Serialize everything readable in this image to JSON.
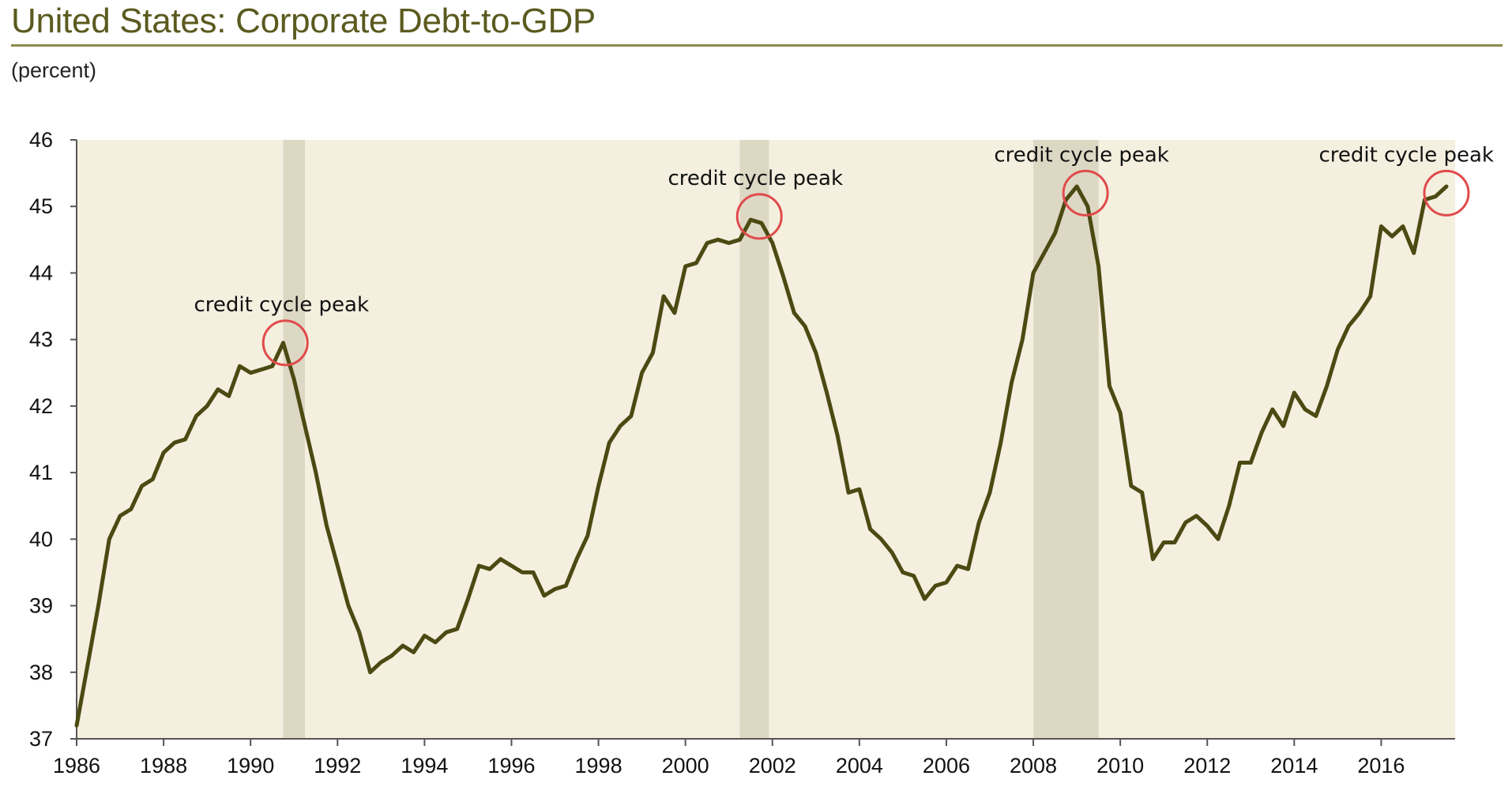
{
  "chart_data": {
    "type": "line",
    "title": "United States: Corporate Debt-to-GDP",
    "subtitle": "(percent)",
    "xlabel": "",
    "ylabel": "",
    "xlim": [
      1986,
      2017.7
    ],
    "ylim": [
      37,
      46
    ],
    "xticks": [
      "1986",
      "1988",
      "1990",
      "1992",
      "1994",
      "1996",
      "1998",
      "2000",
      "2002",
      "2004",
      "2006",
      "2008",
      "2010",
      "2012",
      "2014",
      "2016"
    ],
    "yticks": [
      "37",
      "38",
      "39",
      "40",
      "41",
      "42",
      "43",
      "44",
      "45",
      "46"
    ],
    "colors": {
      "line": "#4a4a12",
      "plot_bg": "#f4efdf",
      "recession": "#ddd8c4",
      "peak_circle": "#e04b4b",
      "title": "#5b5a1f"
    },
    "recessions": [
      {
        "start": 1990.75,
        "end": 1991.25
      },
      {
        "start": 2001.25,
        "end": 2001.92
      },
      {
        "start": 2008.0,
        "end": 2009.5
      }
    ],
    "annotations": [
      {
        "text": "credit cycle peak",
        "x": 1990.8,
        "y": 42.95
      },
      {
        "text": "credit cycle peak",
        "x": 2001.7,
        "y": 44.85
      },
      {
        "text": "credit cycle peak",
        "x": 2009.2,
        "y": 45.2
      },
      {
        "text": "credit cycle peak",
        "x": 2017.5,
        "y": 45.2
      }
    ],
    "series": [
      {
        "x": [
          1986.0,
          1986.25,
          1986.5,
          1986.75,
          1987.0,
          1987.25,
          1987.5,
          1987.75,
          1988.0,
          1988.25,
          1988.5,
          1988.75,
          1989.0,
          1989.25,
          1989.5,
          1989.75,
          1990.0,
          1990.25,
          1990.5,
          1990.75,
          1991.0,
          1991.25,
          1991.5,
          1991.75,
          1992.0,
          1992.25,
          1992.5,
          1992.75,
          1993.0,
          1993.25,
          1993.5,
          1993.75,
          1994.0,
          1994.25,
          1994.5,
          1994.75,
          1995.0,
          1995.25,
          1995.5,
          1995.75,
          1996.0,
          1996.25,
          1996.5,
          1996.75,
          1997.0,
          1997.25,
          1997.5,
          1997.75,
          1998.0,
          1998.25,
          1998.5,
          1998.75,
          1999.0,
          1999.25,
          1999.5,
          1999.75,
          2000.0,
          2000.25,
          2000.5,
          2000.75,
          2001.0,
          2001.25,
          2001.5,
          2001.75,
          2002.0,
          2002.25,
          2002.5,
          2002.75,
          2003.0,
          2003.25,
          2003.5,
          2003.75,
          2004.0,
          2004.25,
          2004.5,
          2004.75,
          2005.0,
          2005.25,
          2005.5,
          2005.75,
          2006.0,
          2006.25,
          2006.5,
          2006.75,
          2007.0,
          2007.25,
          2007.5,
          2007.75,
          2008.0,
          2008.25,
          2008.5,
          2008.75,
          2009.0,
          2009.25,
          2009.5,
          2009.75,
          2010.0,
          2010.25,
          2010.5,
          2010.75,
          2011.0,
          2011.25,
          2011.5,
          2011.75,
          2012.0,
          2012.25,
          2012.5,
          2012.75,
          2013.0,
          2013.25,
          2013.5,
          2013.75,
          2014.0,
          2014.25,
          2014.5,
          2014.75,
          2015.0,
          2015.25,
          2015.5,
          2015.75,
          2016.0,
          2016.25,
          2016.5,
          2016.75,
          2017.0,
          2017.25,
          2017.5
        ],
        "values": [
          37.2,
          38.1,
          39.0,
          40.0,
          40.35,
          40.45,
          40.8,
          40.9,
          41.3,
          41.45,
          41.5,
          41.85,
          42.0,
          42.25,
          42.15,
          42.6,
          42.5,
          42.55,
          42.6,
          42.95,
          42.4,
          41.7,
          41.0,
          40.2,
          39.6,
          39.0,
          38.6,
          38.0,
          38.15,
          38.25,
          38.4,
          38.3,
          38.55,
          38.45,
          38.6,
          38.65,
          39.1,
          39.6,
          39.55,
          39.7,
          39.6,
          39.5,
          39.5,
          39.15,
          39.25,
          39.3,
          39.7,
          40.05,
          40.8,
          41.45,
          41.7,
          41.85,
          42.5,
          42.8,
          43.65,
          43.4,
          44.1,
          44.15,
          44.45,
          44.5,
          44.45,
          44.5,
          44.8,
          44.75,
          44.45,
          43.95,
          43.4,
          43.2,
          42.8,
          42.2,
          41.55,
          40.7,
          40.75,
          40.15,
          40.0,
          39.8,
          39.5,
          39.45,
          39.1,
          39.3,
          39.35,
          39.6,
          39.55,
          40.25,
          40.7,
          41.45,
          42.35,
          43.0,
          44.0,
          44.3,
          44.6,
          45.1,
          45.3,
          45.0,
          44.1,
          42.3,
          41.9,
          40.8,
          40.7,
          39.7,
          39.95,
          39.95,
          40.25,
          40.35,
          40.2,
          40.0,
          40.5,
          41.15,
          41.15,
          41.6,
          41.95,
          41.7,
          42.2,
          41.95,
          41.85,
          42.3,
          42.85,
          43.2,
          43.4,
          43.65,
          44.7,
          44.55,
          44.7,
          44.3,
          45.1,
          45.15,
          45.3
        ]
      }
    ]
  }
}
